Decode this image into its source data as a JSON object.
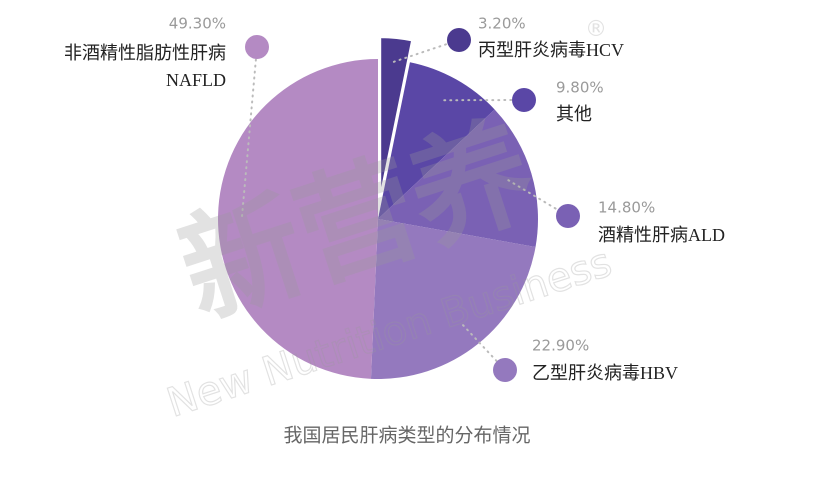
{
  "chart_data": {
    "type": "pie",
    "title": "我国居民肝病类型的分布情况",
    "watermark": [
      "新营养",
      "New Nutrition Business",
      "®"
    ],
    "categories": [
      [
        "丙型肝炎病毒HCV"
      ],
      [
        "其他"
      ],
      [
        "酒精性肝病ALD"
      ],
      [
        "乙型肝炎病毒HBV"
      ],
      [
        "非酒精性脂肪性肝病",
        "NAFLD"
      ]
    ],
    "values": [
      3.2,
      9.8,
      14.8,
      22.9,
      49.3
    ],
    "value_labels": [
      "3.20%",
      "9.80%",
      "14.80%",
      "22.90%",
      "49.30%"
    ],
    "colors": [
      "#4b3a8f",
      "#5a47a6",
      "#7a61b4",
      "#9479be",
      "#b48ac3"
    ],
    "exploded": [
      true,
      false,
      false,
      false,
      false
    ]
  }
}
